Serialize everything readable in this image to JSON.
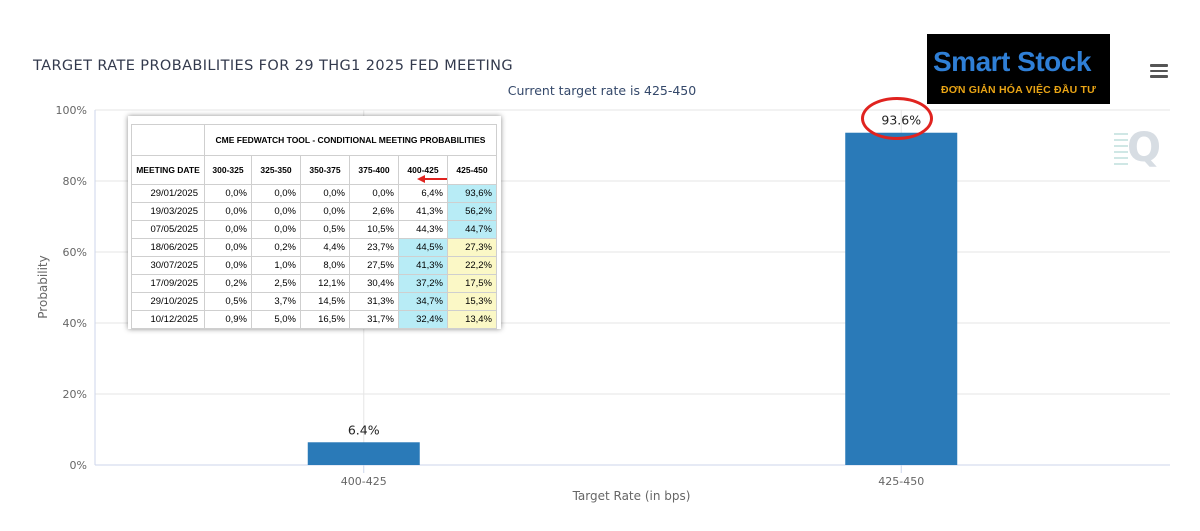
{
  "chart_data": {
    "type": "bar",
    "title": "TARGET RATE PROBABILITIES FOR 29 THG1 2025 FED MEETING",
    "subtitle": "Current target rate is 425-450",
    "xlabel": "Target Rate (in bps)",
    "ylabel": "Probability",
    "categories": [
      "400-425",
      "425-450"
    ],
    "values": [
      6.4,
      93.6
    ],
    "data_labels": [
      "6.4%",
      "93.6%"
    ],
    "ylim": [
      0,
      100
    ],
    "yticks": [
      0,
      20,
      40,
      60,
      80,
      100
    ],
    "ytick_labels": [
      "0%",
      "20%",
      "40%",
      "60%",
      "80%",
      "100%"
    ],
    "grid": true,
    "bar_color": "#2a7ab8",
    "highlighted_label": "93.6%"
  },
  "logo": {
    "main": "Smart Stock",
    "tagline": "ĐƠN GIẢN HÓA VIỆC ĐẦU TƯ",
    "main_color": "#2f7fd6",
    "tagline_color": "#e9a415"
  },
  "watermark": "Q",
  "menu_icon": "hamburger-icon",
  "inset_table": {
    "caption": "CME FEDWATCH TOOL - CONDITIONAL MEETING PROBABILITIES",
    "columns": [
      "MEETING DATE",
      "300-325",
      "325-350",
      "350-375",
      "375-400",
      "400-425",
      "425-450"
    ],
    "rows": [
      {
        "date": "29/01/2025",
        "cells": [
          "0,0%",
          "0,0%",
          "0,0%",
          "0,0%",
          "6,4%",
          "93,6%"
        ],
        "colors": [
          "",
          "",
          "",
          "",
          "",
          "blue"
        ]
      },
      {
        "date": "19/03/2025",
        "cells": [
          "0,0%",
          "0,0%",
          "0,0%",
          "2,6%",
          "41,3%",
          "56,2%"
        ],
        "colors": [
          "",
          "",
          "",
          "",
          "",
          "blue"
        ]
      },
      {
        "date": "07/05/2025",
        "cells": [
          "0,0%",
          "0,0%",
          "0,5%",
          "10,5%",
          "44,3%",
          "44,7%"
        ],
        "colors": [
          "",
          "",
          "",
          "",
          "",
          "blue"
        ]
      },
      {
        "date": "18/06/2025",
        "cells": [
          "0,0%",
          "0,2%",
          "4,4%",
          "23,7%",
          "44,5%",
          "27,3%"
        ],
        "colors": [
          "",
          "",
          "",
          "",
          "blue",
          "yellow"
        ]
      },
      {
        "date": "30/07/2025",
        "cells": [
          "0,0%",
          "1,0%",
          "8,0%",
          "27,5%",
          "41,3%",
          "22,2%"
        ],
        "colors": [
          "",
          "",
          "",
          "",
          "blue",
          "yellow"
        ]
      },
      {
        "date": "17/09/2025",
        "cells": [
          "0,2%",
          "2,5%",
          "12,1%",
          "30,4%",
          "37,2%",
          "17,5%"
        ],
        "colors": [
          "",
          "",
          "",
          "",
          "blue",
          "yellow"
        ]
      },
      {
        "date": "29/10/2025",
        "cells": [
          "0,5%",
          "3,7%",
          "14,5%",
          "31,3%",
          "34,7%",
          "15,3%"
        ],
        "colors": [
          "",
          "",
          "",
          "",
          "blue",
          "yellow"
        ]
      },
      {
        "date": "10/12/2025",
        "cells": [
          "0,9%",
          "5,0%",
          "16,5%",
          "31,7%",
          "32,4%",
          "13,4%"
        ],
        "colors": [
          "",
          "",
          "",
          "",
          "blue",
          "yellow"
        ]
      }
    ]
  }
}
